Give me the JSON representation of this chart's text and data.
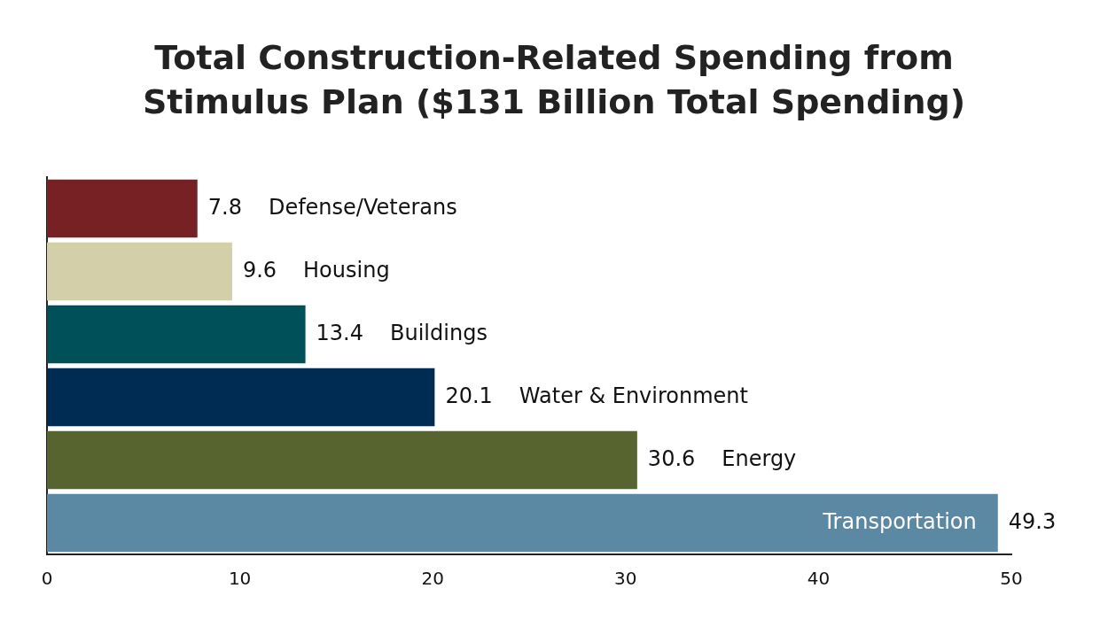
{
  "chart_data": {
    "type": "bar",
    "orientation": "horizontal",
    "title": "Total Construction-Related Spending from Stimulus Plan ($131 Billion Total Spending)",
    "categories": [
      "Defense/Veterans",
      "Housing",
      "Buildings",
      "Water & Environment",
      "Energy",
      "Transportation"
    ],
    "values": [
      7.8,
      9.6,
      13.4,
      20.1,
      30.6,
      49.3
    ],
    "colors": [
      "#772125",
      "#d3cfa9",
      "#00505a",
      "#002b52",
      "#57642f",
      "#5b88a2"
    ],
    "xlim": [
      0,
      50
    ],
    "xticks": [
      0,
      10,
      20,
      30,
      40,
      50
    ],
    "data_labels": true,
    "tick_labels": "x",
    "grid": false,
    "legend": false
  }
}
